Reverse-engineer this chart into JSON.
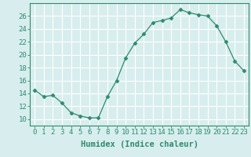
{
  "x": [
    0,
    1,
    2,
    3,
    4,
    5,
    6,
    7,
    8,
    9,
    10,
    11,
    12,
    13,
    14,
    15,
    16,
    17,
    18,
    19,
    20,
    21,
    22,
    23
  ],
  "y": [
    14.5,
    13.5,
    13.7,
    12.5,
    11.0,
    10.5,
    10.2,
    10.2,
    13.5,
    16.0,
    19.5,
    21.8,
    23.2,
    25.0,
    25.3,
    25.7,
    27.0,
    26.5,
    26.2,
    26.0,
    24.5,
    22.0,
    19.0,
    17.5
  ],
  "line_color": "#2e8b6e",
  "marker": "D",
  "marker_size": 2.5,
  "background_color": "#d8eeee",
  "grid_color": "#ffffff",
  "xlabel": "Humidex (Indice chaleur)",
  "ylim": [
    9,
    28
  ],
  "xlim": [
    -0.5,
    23.5
  ],
  "yticks": [
    10,
    12,
    14,
    16,
    18,
    20,
    22,
    24,
    26
  ],
  "xticks": [
    0,
    1,
    2,
    3,
    4,
    5,
    6,
    7,
    8,
    9,
    10,
    11,
    12,
    13,
    14,
    15,
    16,
    17,
    18,
    19,
    20,
    21,
    22,
    23
  ],
  "xlabel_fontsize": 7.5,
  "tick_fontsize": 6.5
}
